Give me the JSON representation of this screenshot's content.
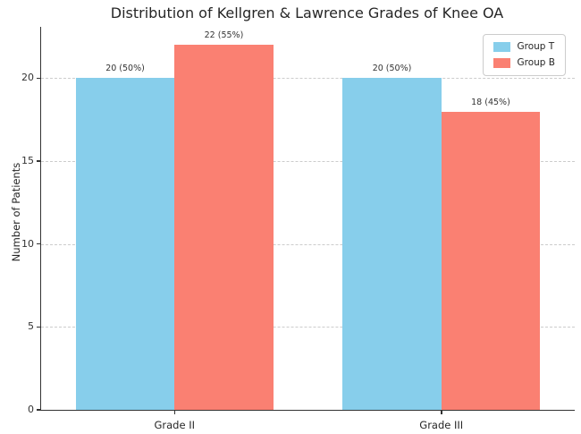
{
  "chart_data": {
    "type": "bar",
    "title": "Distribution of Kellgren & Lawrence Grades of Knee OA",
    "xlabel": "",
    "ylabel": "Number of Patients",
    "categories": [
      "Grade II",
      "Grade III"
    ],
    "series": [
      {
        "name": "Group T",
        "color": "#87CEEB",
        "values": [
          20,
          20
        ],
        "labels": [
          "20 (50%)",
          "20 (50%)"
        ]
      },
      {
        "name": "Group B",
        "color": "#FA8072",
        "values": [
          22,
          18
        ],
        "labels": [
          "22 (55%)",
          "18 (45%)"
        ]
      }
    ],
    "yticks": [
      0,
      5,
      10,
      15,
      20
    ],
    "ylim": [
      0,
      23.1
    ],
    "grid": "horizontal-dashed",
    "legend_position": "upper right"
  }
}
